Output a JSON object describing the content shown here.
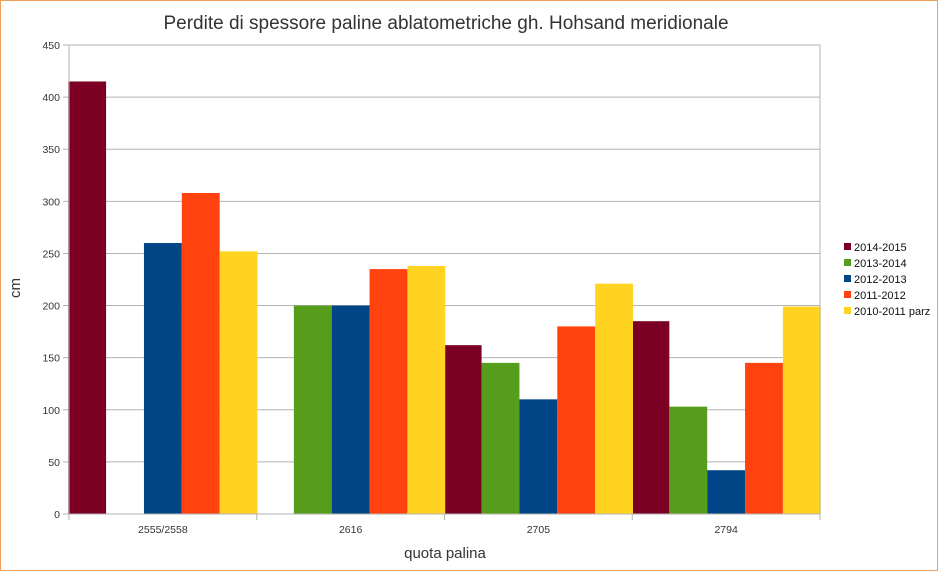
{
  "chart_data": {
    "type": "bar",
    "title": "Perdite di spessore paline ablatometriche gh. Hohsand meridionale",
    "xlabel": "quota palina",
    "ylabel": "cm",
    "ylim": [
      0,
      450
    ],
    "yticks": [
      0,
      50,
      100,
      150,
      200,
      250,
      300,
      350,
      400,
      450
    ],
    "grid": true,
    "legend_position": "right",
    "categories": [
      "2555/2558",
      "2616",
      "2705",
      "2794"
    ],
    "series": [
      {
        "name": "2014-2015",
        "color": "#7b0023",
        "values": [
          415,
          null,
          162,
          185
        ]
      },
      {
        "name": "2013-2014",
        "color": "#579d1c",
        "values": [
          null,
          200,
          145,
          103
        ]
      },
      {
        "name": "2012-2013",
        "color": "#004586",
        "values": [
          260,
          200,
          110,
          42
        ]
      },
      {
        "name": "2011-2012",
        "color": "#ff420e",
        "values": [
          308,
          235,
          180,
          145
        ]
      },
      {
        "name": "2010-2011 parz",
        "color": "#ffd320",
        "values": [
          252,
          238,
          221,
          199
        ]
      }
    ]
  }
}
